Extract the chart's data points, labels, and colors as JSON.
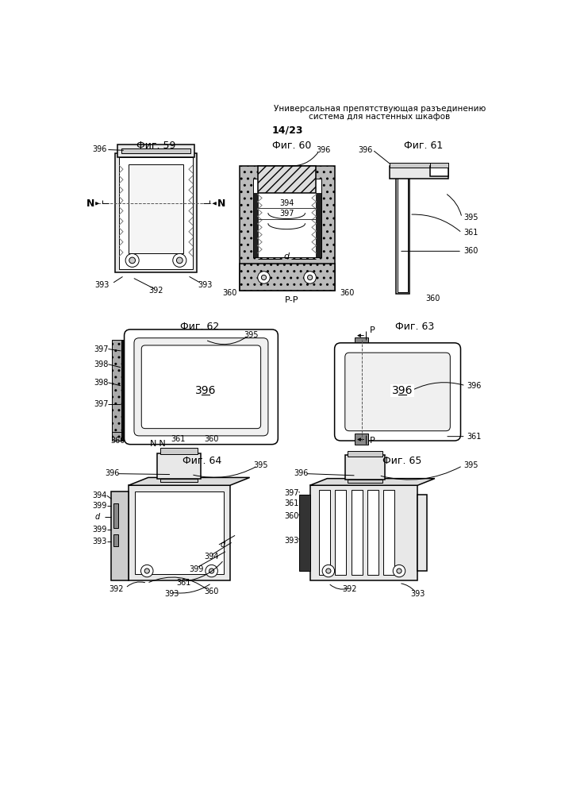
{
  "title_line1": "Универсальная препятствующая разъединению",
  "title_line2": "система для настенных шкафов",
  "page_label": "14/23",
  "bg": "#ffffff",
  "lc": "#000000",
  "gray_light": "#cccccc",
  "gray_med": "#aaaaaa",
  "gray_dark": "#555555",
  "gray_fill": "#e8e8e8",
  "hatch_fill": "#d0d0d0"
}
